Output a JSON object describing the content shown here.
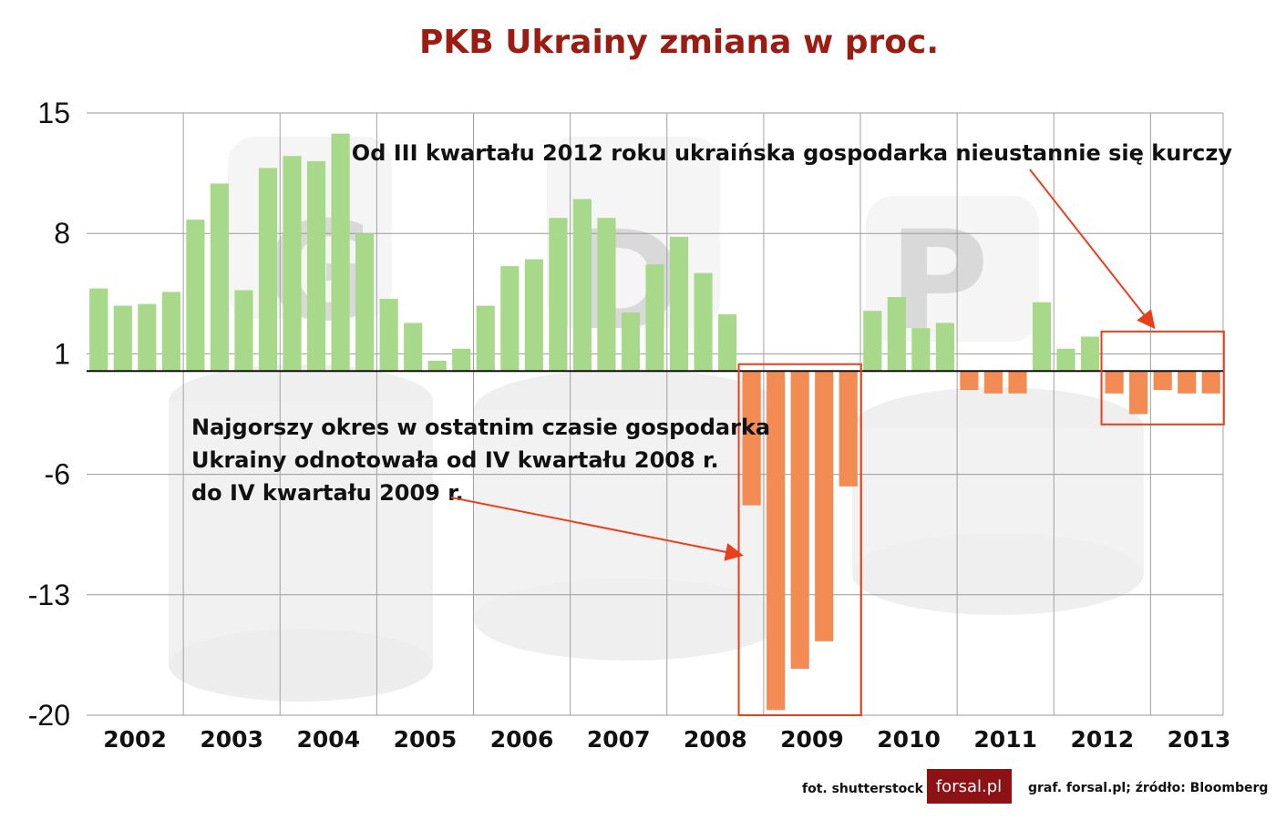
{
  "chart_data": {
    "type": "bar",
    "title": "PKB Ukrainy zmiana w proc.",
    "xlabel": "",
    "ylabel": "",
    "ylim": [
      -20,
      15
    ],
    "y_ticks": [
      15,
      8,
      1,
      -6,
      -13,
      -20
    ],
    "grid": true,
    "year_labels": [
      "2002",
      "2003",
      "2004",
      "2005",
      "2006",
      "2007",
      "2008",
      "2009",
      "2010",
      "2011",
      "2012",
      "2013"
    ],
    "bars_per_year": 4,
    "values": [
      4.8,
      3.8,
      3.9,
      4.6,
      8.8,
      10.9,
      4.7,
      11.8,
      12.5,
      12.2,
      13.8,
      8.0,
      4.2,
      2.8,
      0.6,
      1.3,
      3.8,
      6.1,
      6.5,
      8.9,
      10.0,
      8.9,
      3.4,
      6.2,
      7.8,
      5.7,
      3.3,
      -7.8,
      -19.7,
      -17.3,
      -15.7,
      -6.7,
      3.5,
      4.3,
      2.5,
      2.8,
      -1.1,
      -1.3,
      -1.3,
      4.0,
      1.3,
      2.0,
      -1.3,
      -2.5,
      -1.1,
      -1.3,
      -1.3
    ],
    "colors": {
      "positive": "#a8d98a",
      "negative": "#f28c54",
      "highlight": "#e8401c",
      "title": "#9b1c12"
    },
    "annotations": {
      "top_right": "Od III kwartału 2012 roku ukraińska gospodarka nieustannie się kurczy",
      "middle_lines": [
        "Najgorszy okres w ostatnim czasie gospodarka",
        "Ukrainy odnotowała od IV kwartału 2008 r.",
        "do IV kwartału 2009 r."
      ]
    }
  },
  "watermark": {
    "letters": [
      "G",
      "D",
      "P"
    ]
  },
  "footer": {
    "photo_credit": "fot. shutterstock",
    "logo_text": "forsal.pl",
    "source": "graf. forsal.pl;  źródło: Bloomberg"
  }
}
